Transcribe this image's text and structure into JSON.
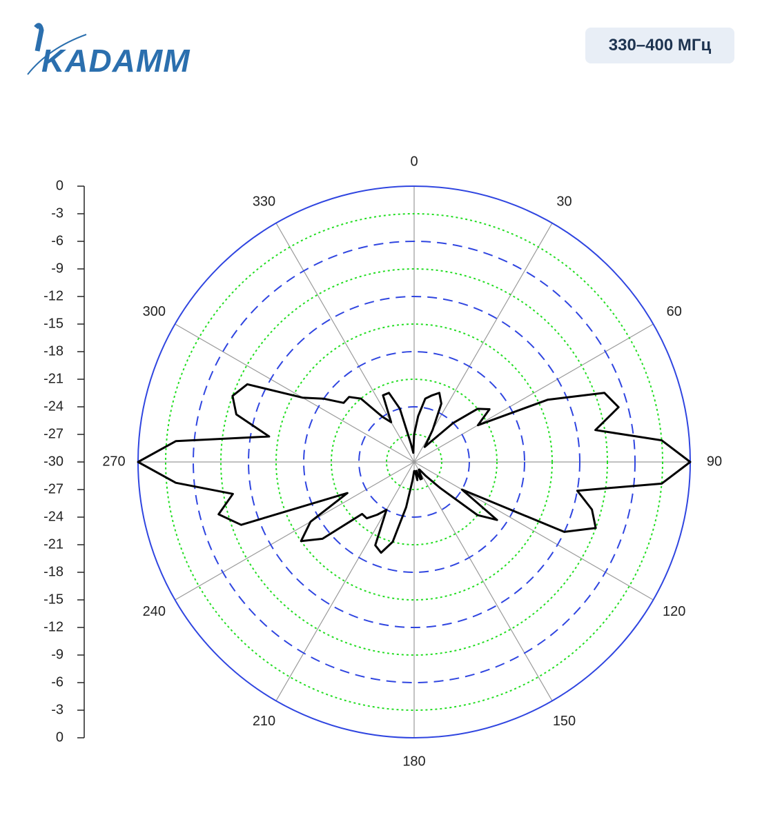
{
  "header": {
    "logo": "KADAMM",
    "band": "330–400 МГц"
  },
  "chart_data": {
    "type": "polar",
    "theta": [
      0,
      5,
      10,
      15,
      20,
      25,
      30,
      35,
      40,
      45,
      50,
      55,
      60,
      65,
      70,
      75,
      80,
      85,
      90,
      95,
      100,
      105,
      110,
      115,
      120,
      125,
      130,
      135,
      140,
      145,
      150,
      155,
      160,
      165,
      170,
      175,
      180,
      185,
      190,
      195,
      200,
      205,
      210,
      215,
      220,
      225,
      230,
      235,
      240,
      245,
      250,
      255,
      260,
      265,
      270,
      275,
      280,
      285,
      290,
      295,
      300,
      305,
      310,
      315,
      320,
      325,
      330,
      335,
      340,
      345,
      350,
      355
    ],
    "series": [
      {
        "color": "#000000",
        "values": [
          -27,
          -25,
          -23,
          -22.5,
          -22,
          -23,
          -26,
          -28,
          -27,
          -24,
          -21,
          -20,
          -22,
          -14,
          -8,
          -7,
          -10,
          -3,
          0,
          -3,
          -12,
          -10,
          -9,
          -12,
          -24,
          -19,
          -21,
          -26,
          -28,
          -29,
          -29,
          -28,
          -28,
          -29,
          -28,
          -29,
          -29,
          -28,
          -25,
          -21,
          -19.5,
          -20,
          -24,
          -23,
          -22,
          -22,
          -17,
          -15,
          -17,
          -22,
          -10,
          -8,
          -10,
          -4,
          0,
          -4,
          -14,
          -10,
          -9,
          -10,
          -16,
          -18,
          -20,
          -20,
          -21,
          -24,
          -25,
          -22,
          -22,
          -24,
          -28,
          -29
        ]
      }
    ],
    "rlim": [
      -30,
      0
    ],
    "rticks": [
      0,
      -3,
      -6,
      -9,
      -12,
      -15,
      -18,
      -21,
      -24,
      -27,
      -30
    ],
    "thetaticks": [
      0,
      30,
      60,
      90,
      120,
      150,
      180,
      210,
      240,
      270,
      300,
      330
    ],
    "grid": true,
    "grid_colors": [
      "#2f45e0",
      "#22dd22"
    ],
    "spoke_color": "#9a9a9a"
  }
}
